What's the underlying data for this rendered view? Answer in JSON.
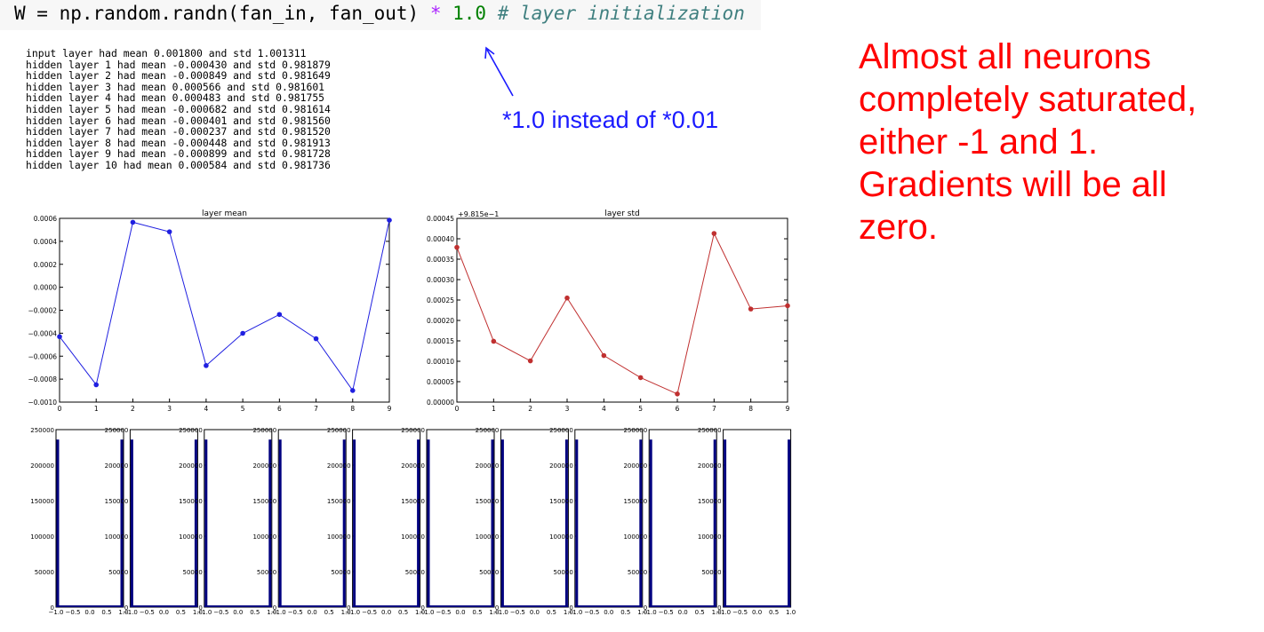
{
  "code": {
    "var": "W",
    "eq": " = ",
    "call": "np.random.randn(fan_in, fan_out)",
    "op": " * ",
    "num": "1.0",
    "comment": " # layer initialization"
  },
  "log_lines": [
    "input layer had mean 0.001800 and std 1.001311",
    "hidden layer 1 had mean -0.000430 and std 0.981879",
    "hidden layer 2 had mean -0.000849 and std 0.981649",
    "hidden layer 3 had mean 0.000566 and std 0.981601",
    "hidden layer 4 had mean 0.000483 and std 0.981755",
    "hidden layer 5 had mean -0.000682 and std 0.981614",
    "hidden layer 6 had mean -0.000401 and std 0.981560",
    "hidden layer 7 had mean -0.000237 and std 0.981520",
    "hidden layer 8 had mean -0.000448 and std 0.981913",
    "hidden layer 9 had mean -0.000899 and std 0.981728",
    "hidden layer 10 had mean 0.000584 and std 0.981736"
  ],
  "annotation": "*1.0 instead of *0.01",
  "message": "Almost all neurons completely saturated, either -1 and 1. Gradients will be all zero.",
  "colors": {
    "mean": "#1f1fe0",
    "std": "#c03030",
    "hist": "#00007f",
    "annotation": "#1a1aff",
    "message": "#ff0000"
  },
  "chart_data": [
    {
      "type": "line",
      "title": "layer mean",
      "x": [
        0,
        1,
        2,
        3,
        4,
        5,
        6,
        7,
        8,
        9
      ],
      "y": [
        -0.00043,
        -0.000849,
        0.000566,
        0.000483,
        -0.000682,
        -0.000401,
        -0.000237,
        -0.000448,
        -0.000899,
        0.000584
      ],
      "xlim": [
        0,
        9
      ],
      "ylim": [
        -0.001,
        0.0006
      ],
      "yticks": [
        "0.0006",
        "0.0004",
        "0.0002",
        "0.0000",
        "−0.0002",
        "−0.0004",
        "−0.0006",
        "−0.0008",
        "−0.0010"
      ],
      "xticks": [
        "0",
        "1",
        "2",
        "3",
        "4",
        "5",
        "6",
        "7",
        "8",
        "9"
      ]
    },
    {
      "type": "line",
      "title": "layer std",
      "offset_label": "+9.815e−1",
      "x": [
        0,
        1,
        2,
        3,
        4,
        5,
        6,
        7,
        8,
        9
      ],
      "y": [
        0.000379,
        0.000149,
        0.000101,
        0.000255,
        0.000114,
        6e-05,
        2e-05,
        0.000413,
        0.000228,
        0.000236
      ],
      "xlim": [
        0,
        9
      ],
      "ylim": [
        0,
        0.00045
      ],
      "yticks": [
        "0.00045",
        "0.00040",
        "0.00035",
        "0.00030",
        "0.00025",
        "0.00020",
        "0.00015",
        "0.00010",
        "0.00005",
        "0.00000"
      ],
      "xticks": [
        "0",
        "1",
        "2",
        "3",
        "4",
        "5",
        "6",
        "7",
        "8",
        "9"
      ]
    },
    {
      "type": "bar",
      "description_count": 10,
      "ylim": [
        0,
        250000
      ],
      "yticks": [
        "250000",
        "200000",
        "150000",
        "100000",
        "50000",
        "0"
      ],
      "xticks": [
        "−1.0",
        "−0.5",
        "0.0",
        "0.5",
        "1.0"
      ],
      "edge_bar_value": 236000
    }
  ]
}
